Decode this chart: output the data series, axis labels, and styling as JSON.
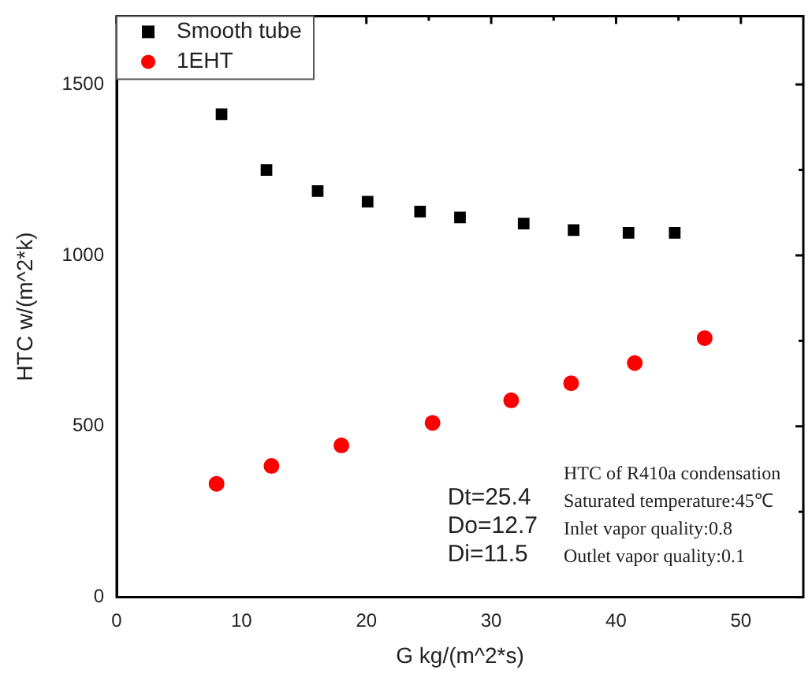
{
  "chart_data": {
    "type": "scatter",
    "xlabel": "G kg/(m^2*s)",
    "ylabel": "HTC w/(m^2*k)",
    "xlim": [
      0,
      55
    ],
    "xticks": [
      0,
      {
        "value": 5,
        "label": null
      },
      10,
      {
        "value": 15,
        "label": null
      },
      20,
      {
        "value": 25,
        "label": null
      },
      30,
      {
        "value": 35,
        "label": null
      },
      40,
      {
        "value": 45,
        "label": null
      },
      50
    ],
    "ylim": [
      0,
      1700
    ],
    "yticks": [
      0,
      {
        "value": 250,
        "label": null
      },
      500,
      {
        "value": 750,
        "label": null
      },
      1000,
      {
        "value": 1250,
        "label": null
      },
      1500
    ],
    "grid": false,
    "legend": "top left",
    "series": [
      {
        "name": "Smooth tube",
        "color": "#000000",
        "marker": "square",
        "x": [
          8.4,
          12.0,
          16.1,
          20.1,
          24.3,
          27.5,
          32.6,
          36.6,
          41.0,
          44.7
        ],
        "values": [
          1413,
          1250,
          1188,
          1157,
          1128,
          1111,
          1093,
          1074,
          1066,
          1066
        ]
      },
      {
        "name": "1EHT",
        "color": "#ff0000",
        "marker": "circle",
        "x": [
          8.0,
          12.4,
          18.0,
          25.3,
          31.6,
          36.4,
          41.5,
          47.1
        ],
        "values": [
          332,
          384,
          444,
          510,
          576,
          626,
          685,
          758
        ]
      }
    ],
    "annotations": [
      "Dt=25.4\nDo=12.7\nDi=11.5",
      "HTC of R410a condensation\nSaturated temperature:45℃\nInlet vapor quality:0.8\nOutlet vapor quality:0.1"
    ]
  }
}
